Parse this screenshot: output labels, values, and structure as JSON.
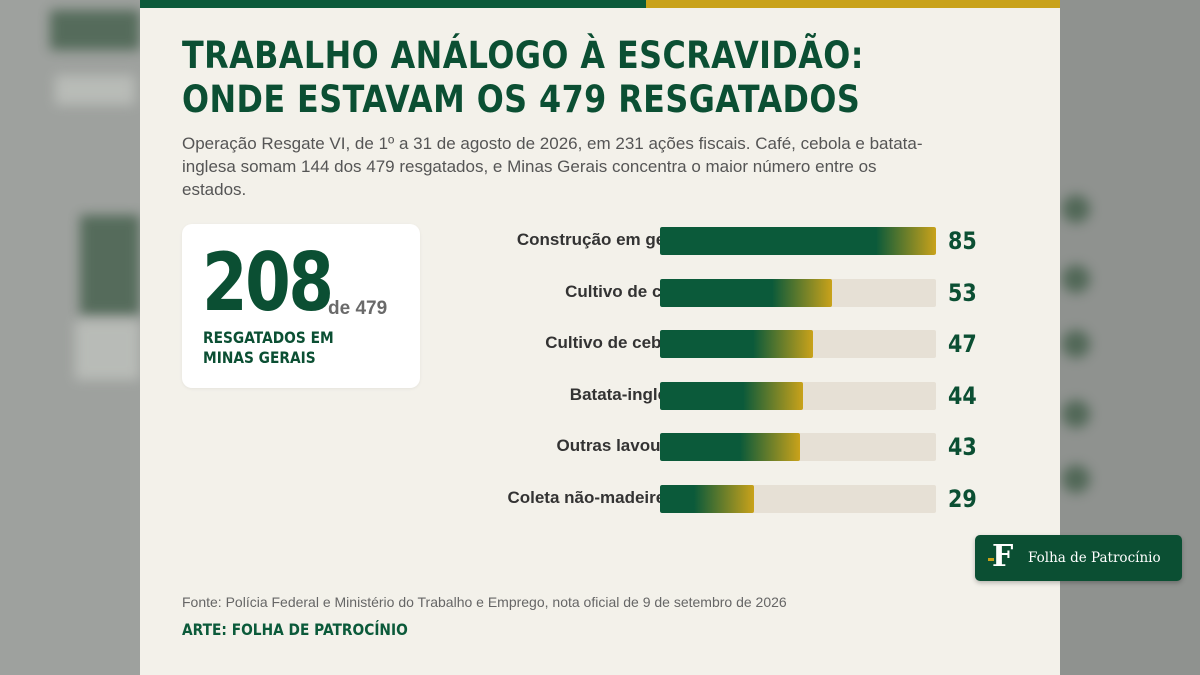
{
  "header": {
    "title": "Trabalho análogo à escravidão: onde estavam os 479 resgatados",
    "subtitle": "Operação Resgate VI, de 1º a 31 de agosto de 2026, em 231 ações fiscais. Café, cebola e batata-inglesa somam 144 dos 479 resgatados, e Minas Gerais concentra o maior número entre os estados."
  },
  "kpi": {
    "number": "208",
    "of_total": "de 479",
    "label": "Resgatados em Minas Gerais"
  },
  "chart_data": {
    "type": "bar",
    "orientation": "horizontal",
    "categories": [
      "Construção em geral",
      "Cultivo de café",
      "Cultivo de cebola",
      "Batata-inglesa",
      "Outras lavouras",
      "Coleta não-madeireira"
    ],
    "values": [
      85,
      53,
      47,
      44,
      43,
      29
    ],
    "xlim": [
      0,
      85
    ],
    "grid": false,
    "colors": {
      "bar": "#0b5a3a",
      "bar_tip": "#c9a21a",
      "track": "#e6e0d5"
    }
  },
  "footer": {
    "source": "Fonte: Polícia Federal e Ministério do Trabalho e Emprego, nota oficial de 9 de setembro de 2026",
    "credit": "Arte: Folha de Patrocínio"
  },
  "badge": {
    "letter": "F",
    "text": "Folha de Patrocínio"
  },
  "colors": {
    "brand_green": "#0b4f33",
    "accent_gold": "#c9a21a",
    "card_bg": "#f3f1ea"
  }
}
